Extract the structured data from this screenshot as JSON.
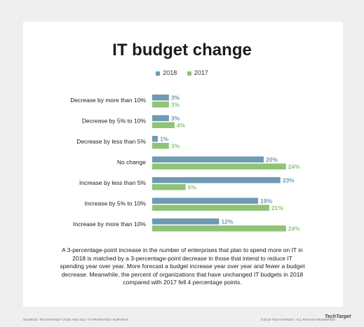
{
  "chart_data": {
    "type": "bar",
    "orientation": "horizontal",
    "title": "IT budget change",
    "categories": [
      "Decrease by more than 10%",
      "Decrease by 5% to 10%",
      "Decrease by less than 5%",
      "No change",
      "Increase by less than 5%",
      "Increase by 5% to 10%",
      "Increase by more than 10%"
    ],
    "series": [
      {
        "name": "2018",
        "values": [
          3,
          3,
          1,
          20,
          23,
          19,
          12
        ],
        "color": "#6e9bb3"
      },
      {
        "name": "2017",
        "values": [
          3,
          4,
          3,
          24,
          6,
          21,
          24
        ],
        "color": "#8fc478"
      }
    ],
    "value_suffix": "%",
    "xlim": [
      0,
      25
    ],
    "grid": false,
    "legend_position": "top-center"
  },
  "caption": "A 3-percentage-point increase in the number of enterprises that plan to spend more on IT in 2018 is matched by a 3-percentage-point decrease in those that intend to reduce IT spending year over year. More forecast a budget increase year over year and fewer a budget decrease. Meanwhile, the percent of organizations that have unchanged IT budgets in 2018 compared with 2017 fell 4 percentage points.",
  "source": "SOURCE: TECHTARGET 2018 AND 2017 IT PRIORITIES SURVEYS",
  "copyright": "©2018 TECHTARGET. ALL RIGHTS RESERVED",
  "brand": "TechTarget"
}
